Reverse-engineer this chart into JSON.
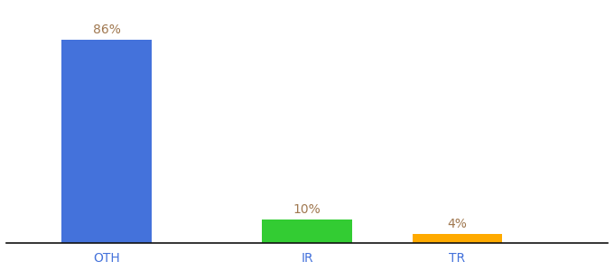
{
  "categories": [
    "OTH",
    "IR",
    "TR"
  ],
  "values": [
    86,
    10,
    4
  ],
  "bar_colors": [
    "#4472db",
    "#33cc33",
    "#ffaa00"
  ],
  "labels": [
    "86%",
    "10%",
    "4%"
  ],
  "label_color": "#a07850",
  "background_color": "#ffffff",
  "ylim": [
    0,
    100
  ],
  "label_fontsize": 10,
  "tick_fontsize": 10,
  "tick_color": "#4472db",
  "bar_positions": [
    1,
    3,
    4.5
  ],
  "bar_width": 0.9,
  "xlim": [
    0,
    6
  ]
}
